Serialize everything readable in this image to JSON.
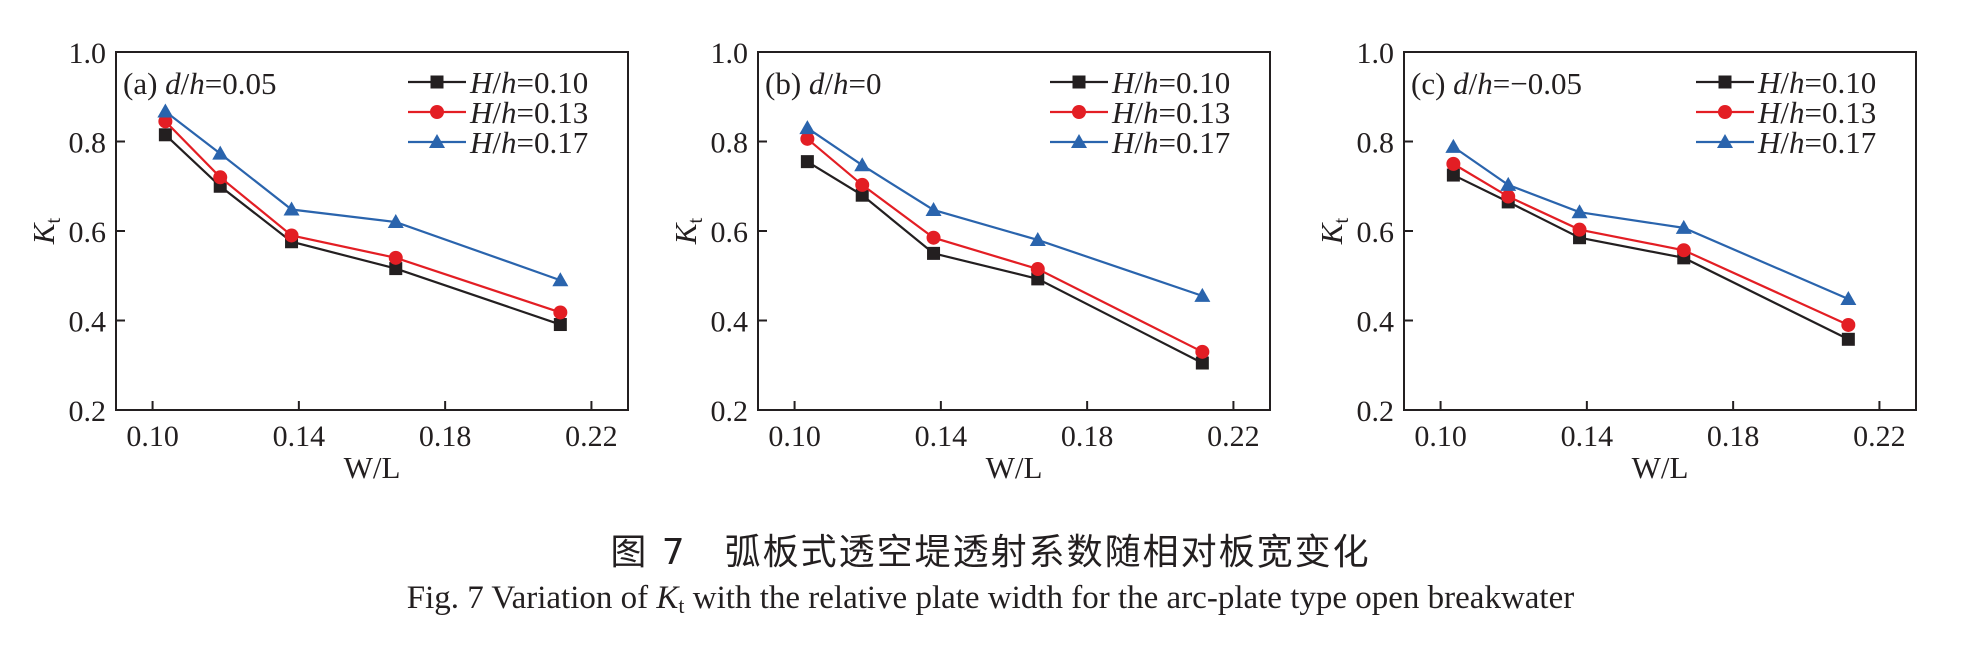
{
  "chart_data": [
    {
      "type": "line",
      "panel_label": "(a) d/h=0.05",
      "xlabel": "W/L",
      "ylabel": "Kt",
      "xlim": [
        0.09,
        0.23
      ],
      "ylim": [
        0.2,
        1.0
      ],
      "xticks": [
        "0.10",
        "0.14",
        "0.18",
        "0.22"
      ],
      "yticks": [
        "0.2",
        "0.4",
        "0.6",
        "0.8",
        "1.0"
      ],
      "legend_position": "top-right",
      "grid": false,
      "x": [
        0.1035,
        0.1185,
        0.138,
        0.1665,
        0.2115
      ],
      "series": [
        {
          "name": "H/h=0.10",
          "color": "#231f20",
          "marker": "square",
          "values": [
            0.815,
            0.7,
            0.576,
            0.516,
            0.391
          ]
        },
        {
          "name": "H/h=0.13",
          "color": "#e31e24",
          "marker": "circle",
          "values": [
            0.845,
            0.72,
            0.59,
            0.54,
            0.418
          ]
        },
        {
          "name": "H/h=0.17",
          "color": "#2a64ad",
          "marker": "triangle",
          "values": [
            0.867,
            0.773,
            0.648,
            0.62,
            0.49
          ]
        }
      ]
    },
    {
      "type": "line",
      "panel_label": "(b) d/h=0",
      "xlabel": "W/L",
      "ylabel": "Kt",
      "xlim": [
        0.09,
        0.23
      ],
      "ylim": [
        0.2,
        1.0
      ],
      "xticks": [
        "0.10",
        "0.14",
        "0.18",
        "0.22"
      ],
      "yticks": [
        "0.2",
        "0.4",
        "0.6",
        "0.8",
        "1.0"
      ],
      "legend_position": "top-right",
      "grid": false,
      "x": [
        0.1035,
        0.1185,
        0.138,
        0.1665,
        0.2115
      ],
      "series": [
        {
          "name": "H/h=0.10",
          "color": "#231f20",
          "marker": "square",
          "values": [
            0.755,
            0.68,
            0.55,
            0.493,
            0.305
          ]
        },
        {
          "name": "H/h=0.13",
          "color": "#e31e24",
          "marker": "circle",
          "values": [
            0.806,
            0.703,
            0.585,
            0.515,
            0.33
          ]
        },
        {
          "name": "H/h=0.17",
          "color": "#2a64ad",
          "marker": "triangle",
          "values": [
            0.83,
            0.747,
            0.647,
            0.58,
            0.455
          ]
        }
      ]
    },
    {
      "type": "line",
      "panel_label": "(c) d/h=−0.05",
      "xlabel": "W/L",
      "ylabel": "Kt",
      "xlim": [
        0.09,
        0.23
      ],
      "ylim": [
        0.2,
        1.0
      ],
      "xticks": [
        "0.10",
        "0.14",
        "0.18",
        "0.22"
      ],
      "yticks": [
        "0.2",
        "0.4",
        "0.6",
        "0.8",
        "1.0"
      ],
      "legend_position": "top-right",
      "grid": false,
      "x": [
        0.1035,
        0.1185,
        0.138,
        0.1665,
        0.2115
      ],
      "series": [
        {
          "name": "H/h=0.10",
          "color": "#231f20",
          "marker": "square",
          "values": [
            0.725,
            0.665,
            0.585,
            0.54,
            0.358
          ]
        },
        {
          "name": "H/h=0.13",
          "color": "#e31e24",
          "marker": "circle",
          "values": [
            0.75,
            0.677,
            0.603,
            0.557,
            0.39
          ]
        },
        {
          "name": "H/h=0.17",
          "color": "#2a64ad",
          "marker": "triangle",
          "values": [
            0.788,
            0.703,
            0.642,
            0.607,
            0.448
          ]
        }
      ]
    }
  ],
  "caption": {
    "cn": "图 7　弧板式透空堤透射系数随相对板宽变化",
    "en_prefix": "Fig. 7   Variation of ",
    "en_symbol": "K",
    "en_subscript": "t",
    "en_suffix": " with the relative plate width for the arc-plate type open breakwater"
  }
}
